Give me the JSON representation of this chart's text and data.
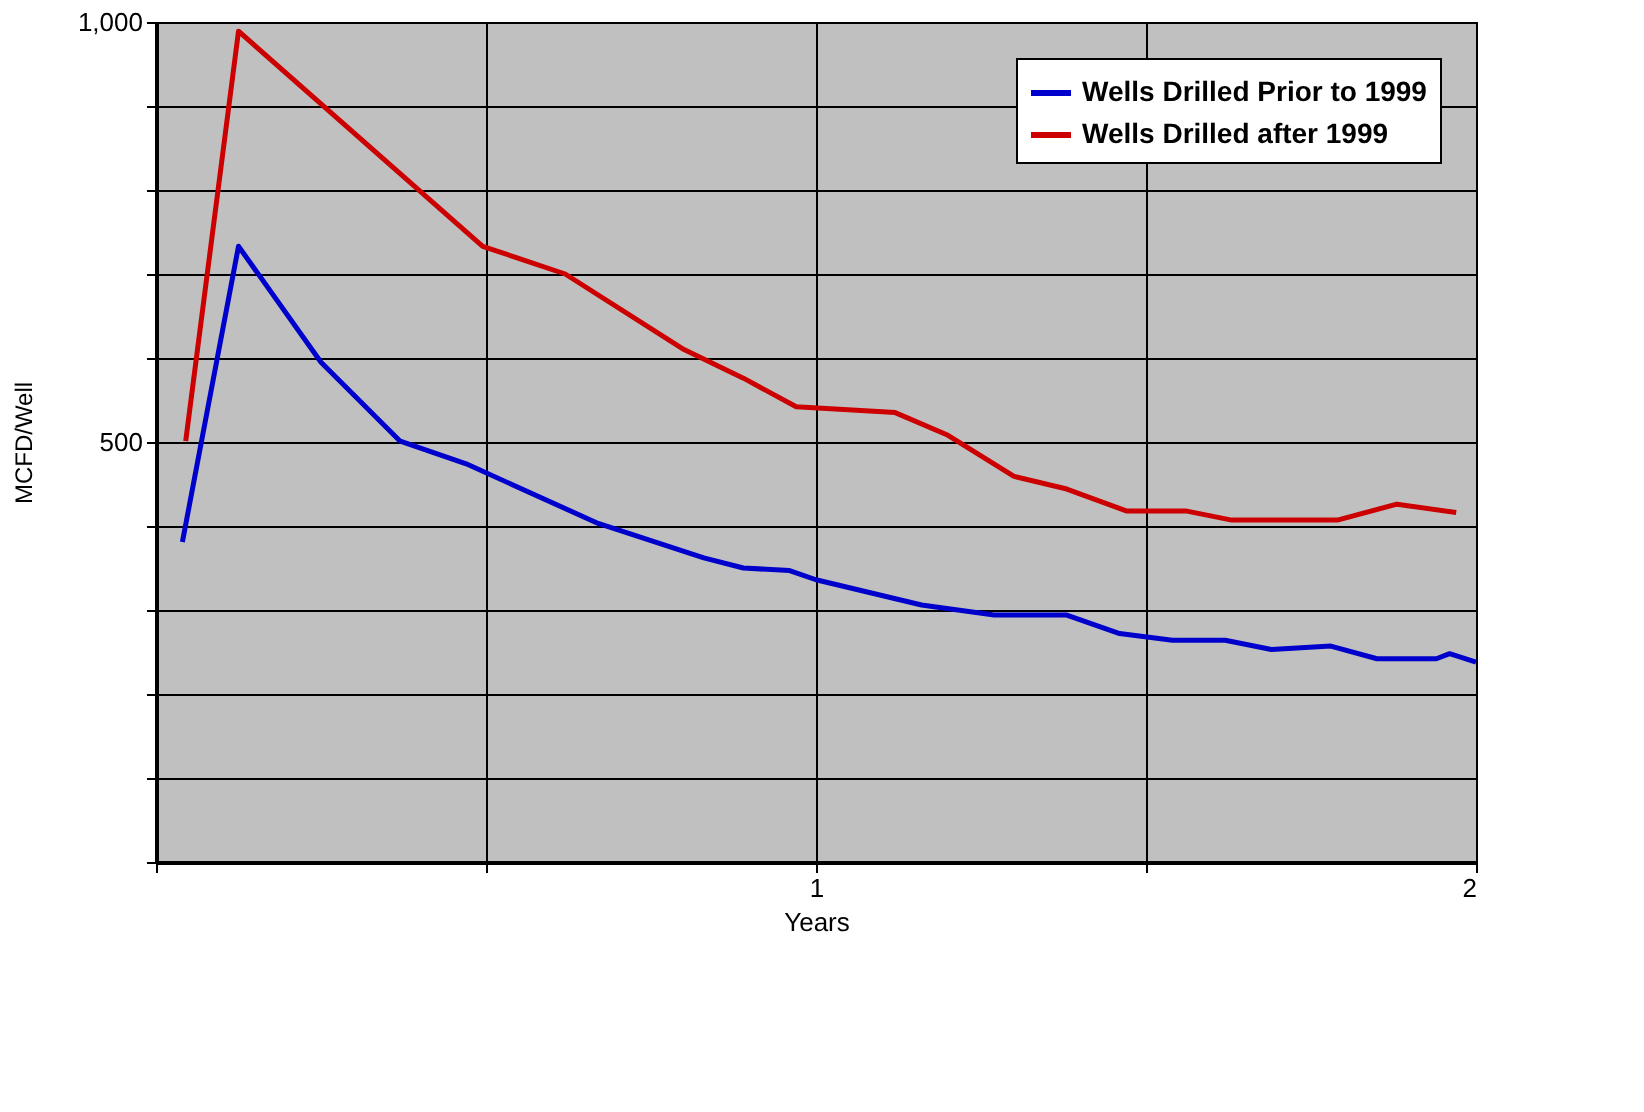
{
  "chart_data": {
    "type": "line",
    "xlabel": "Years",
    "ylabel": "MCFD/Well",
    "xlim": [
      0,
      2
    ],
    "ylim": [
      0,
      1000
    ],
    "xticks": [
      {
        "value": 0,
        "label": null
      },
      {
        "value": 0.5,
        "label": null
      },
      1,
      {
        "value": 1.5,
        "label": null
      },
      2
    ],
    "yticks": [
      {
        "value": 0,
        "label": null
      },
      {
        "value": 100,
        "label": null
      },
      {
        "value": 200,
        "label": null
      },
      {
        "value": 300,
        "label": null
      },
      {
        "value": 400,
        "label": null
      },
      500,
      {
        "value": 600,
        "label": null
      },
      {
        "value": 700,
        "label": null
      },
      {
        "value": 800,
        "label": null
      },
      {
        "value": 900,
        "label": null
      },
      {
        "value": 1000,
        "label": "1,000"
      }
    ],
    "grid": true,
    "legend": "top right",
    "marker": "none",
    "line_style": "solid",
    "series": [
      {
        "name": "Wells Drilled Prior to 1999",
        "color": "#0000cc",
        "x": [
          0.04,
          0.125,
          0.25,
          0.37,
          0.47,
          0.67,
          0.83,
          0.89,
          0.96,
          1.0,
          1.16,
          1.27,
          1.38,
          1.46,
          1.54,
          1.62,
          1.69,
          1.78,
          1.85,
          1.94,
          1.96,
          2.0
        ],
        "values": [
          381,
          733,
          595,
          501,
          474,
          403,
          362,
          350,
          347,
          336,
          306,
          294,
          294,
          272,
          264,
          264,
          253,
          257,
          242,
          242,
          248,
          238
        ]
      },
      {
        "name": "Wells Drilled after 1999",
        "color": "#cc0000",
        "x": [
          0.045,
          0.125,
          0.495,
          0.62,
          0.8,
          0.89,
          0.97,
          1.12,
          1.2,
          1.3,
          1.38,
          1.47,
          1.56,
          1.63,
          1.79,
          1.88,
          1.97
        ],
        "values": [
          501,
          989,
          733,
          700,
          610,
          576,
          542,
          535,
          508,
          459,
          444,
          418,
          418,
          407,
          407,
          426,
          416
        ]
      }
    ]
  }
}
